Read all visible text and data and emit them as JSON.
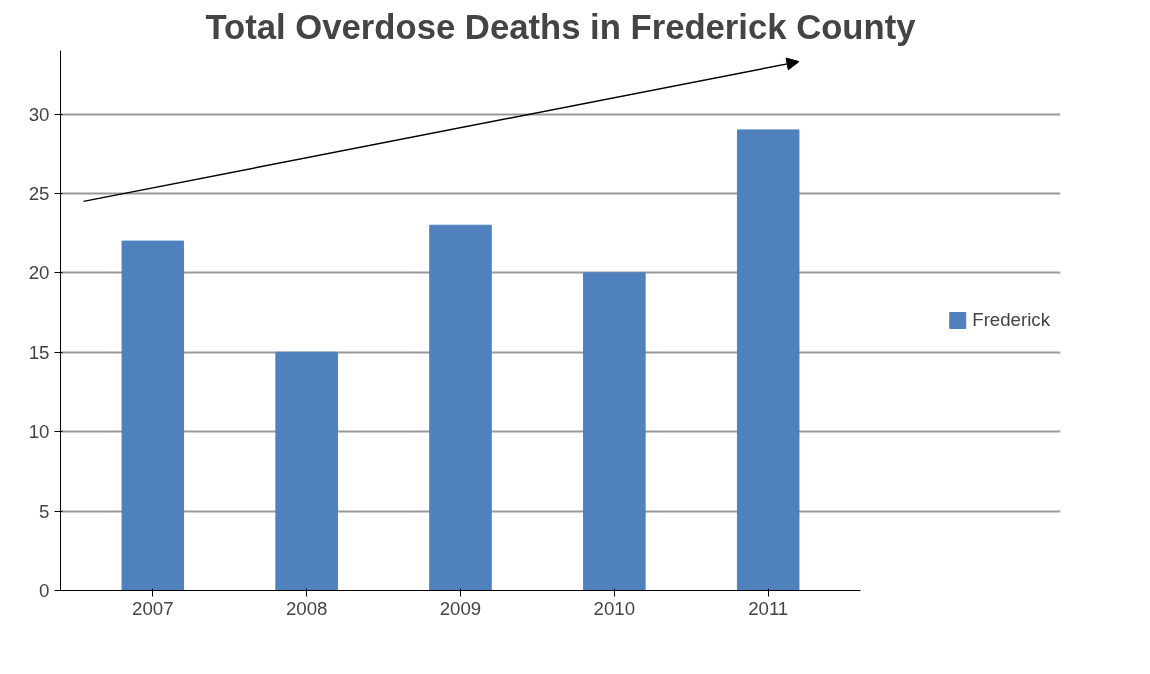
{
  "chart_data": {
    "type": "bar",
    "title": "Total Overdose Deaths in Frederick County",
    "categories": [
      "2007",
      "2008",
      "2009",
      "2010",
      "2011"
    ],
    "series": [
      {
        "name": "Frederick",
        "color": "#4f81bd",
        "values": [
          22,
          15,
          23,
          20,
          29
        ]
      }
    ],
    "ylim": [
      0,
      34
    ],
    "yticks": [
      0,
      5,
      10,
      15,
      20,
      25,
      30
    ],
    "grid": "y",
    "legend": "right"
  }
}
